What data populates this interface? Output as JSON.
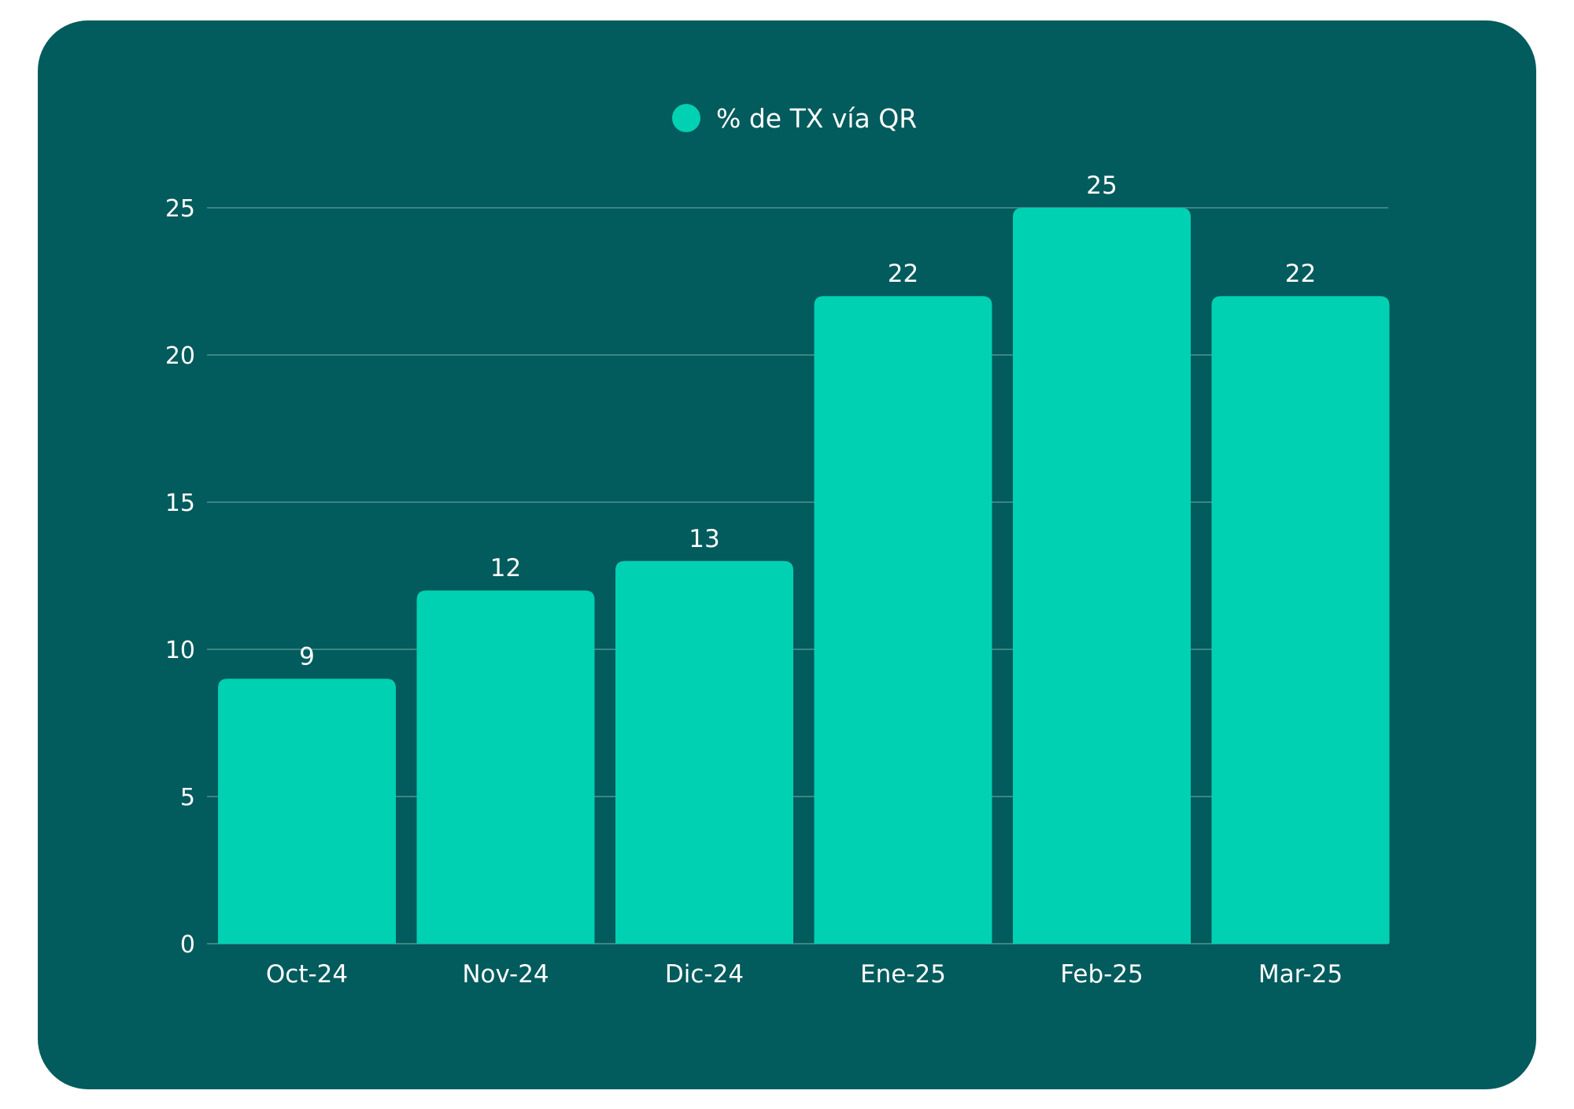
{
  "chart_data": {
    "type": "bar",
    "title": "",
    "xlabel": "",
    "ylabel": "",
    "categories": [
      "Oct-24",
      "Nov-24",
      "Dic-24",
      "Ene-25",
      "Feb-25",
      "Mar-25"
    ],
    "series": [
      {
        "name": "% de TX vía QR",
        "values": [
          9,
          12,
          13,
          22,
          25,
          22
        ],
        "color": "#00d1b2"
      }
    ],
    "data_labels": [
      "9",
      "12",
      "13",
      "22",
      "25",
      "22"
    ],
    "y_ticks": [
      "0",
      "5",
      "10",
      "15",
      "20",
      "25"
    ],
    "ylim": [
      0,
      25
    ],
    "grid": true,
    "legend": "top-center",
    "background_color": "#025b5c",
    "gridline_color": "#3d8584"
  }
}
